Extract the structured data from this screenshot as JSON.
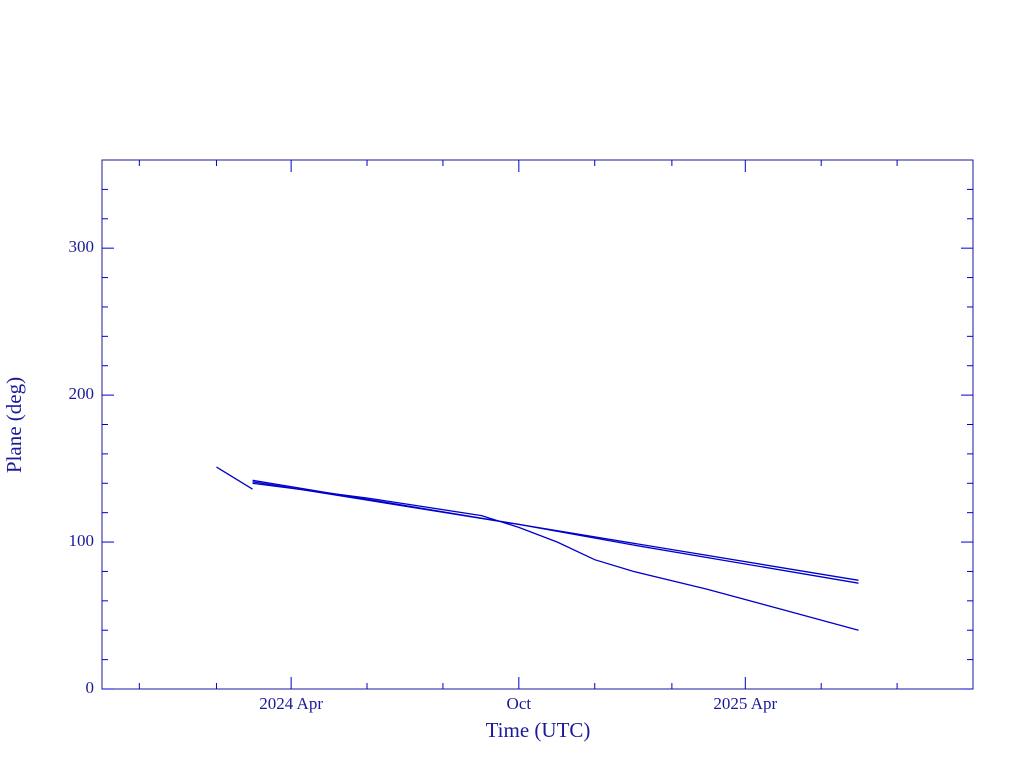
{
  "chart_data": {
    "type": "line",
    "xlabel": "Time (UTC)",
    "ylabel": "Plane (deg)",
    "xlim": [
      "2023-11",
      "2025-10"
    ],
    "xticks": [
      {
        "value": "2024-04",
        "label": "2024 Apr"
      },
      {
        "value": "2024-10",
        "label": "Oct"
      },
      {
        "value": "2025-04",
        "label": "2025 Apr"
      }
    ],
    "minor_xticks": [
      "2023-12",
      "2024-02",
      "2024-06",
      "2024-08",
      "2024-12",
      "2025-02",
      "2025-06",
      "2025-08"
    ],
    "ylim": [
      0,
      360
    ],
    "yticks": [
      0,
      100,
      200,
      300
    ],
    "minor_yticks": [
      20,
      40,
      60,
      80,
      120,
      140,
      160,
      180,
      220,
      240,
      260,
      280,
      320,
      340
    ],
    "color": "#0000cc",
    "series": [
      {
        "color": "#0000cc",
        "x": [
          "2024-02",
          "2024-03"
        ],
        "values": [
          151,
          136
        ]
      },
      {
        "color": "#0000cc",
        "x": [
          "2024-03",
          "2024-10",
          "2025-07"
        ],
        "values": [
          142,
          112,
          74
        ]
      },
      {
        "color": "#0000cc",
        "x": [
          "2024-03",
          "2024-10",
          "2025-01",
          "2025-07"
        ],
        "values": [
          141,
          112,
          98,
          72
        ]
      },
      {
        "color": "#0000cc",
        "x": [
          "2024-03",
          "2024-06",
          "2024-09",
          "2024-10",
          "2024-11",
          "2024-12",
          "2025-01",
          "2025-03",
          "2025-05",
          "2025-07"
        ],
        "values": [
          140,
          130,
          118,
          110,
          100,
          88,
          80,
          68,
          54,
          40
        ]
      }
    ]
  }
}
